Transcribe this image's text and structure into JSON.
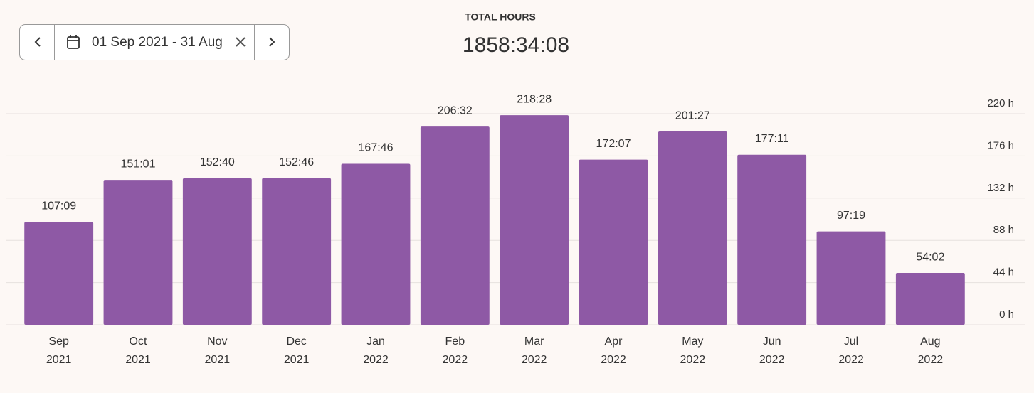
{
  "date_range": {
    "label": "01 Sep 2021 - 31 Aug"
  },
  "summary": {
    "title": "TOTAL HOURS",
    "value": "1858:34:08"
  },
  "chart_data": {
    "type": "bar",
    "categories": [
      "Sep",
      "Oct",
      "Nov",
      "Dec",
      "Jan",
      "Feb",
      "Mar",
      "Apr",
      "May",
      "Jun",
      "Jul",
      "Aug"
    ],
    "category_years": [
      "2021",
      "2021",
      "2021",
      "2021",
      "2022",
      "2022",
      "2022",
      "2022",
      "2022",
      "2022",
      "2022",
      "2022"
    ],
    "values": [
      107.15,
      151.017,
      152.667,
      152.767,
      167.767,
      206.533,
      218.467,
      172.117,
      201.45,
      177.183,
      97.317,
      54.033
    ],
    "value_labels": [
      "107:09",
      "151:01",
      "152:40",
      "152:46",
      "167:46",
      "206:32",
      "218:28",
      "172:07",
      "201:27",
      "177:11",
      "97:19",
      "54:02"
    ],
    "color": "#8e59a5",
    "ylim": [
      0,
      220
    ],
    "yticks": [
      {
        "value": 0,
        "label": "0 h"
      },
      {
        "value": 44,
        "label": "44 h"
      },
      {
        "value": 88,
        "label": "88 h"
      },
      {
        "value": 132,
        "label": "132 h"
      },
      {
        "value": 176,
        "label": "176 h"
      },
      {
        "value": 220,
        "label": "220 h"
      }
    ],
    "grid": true
  }
}
